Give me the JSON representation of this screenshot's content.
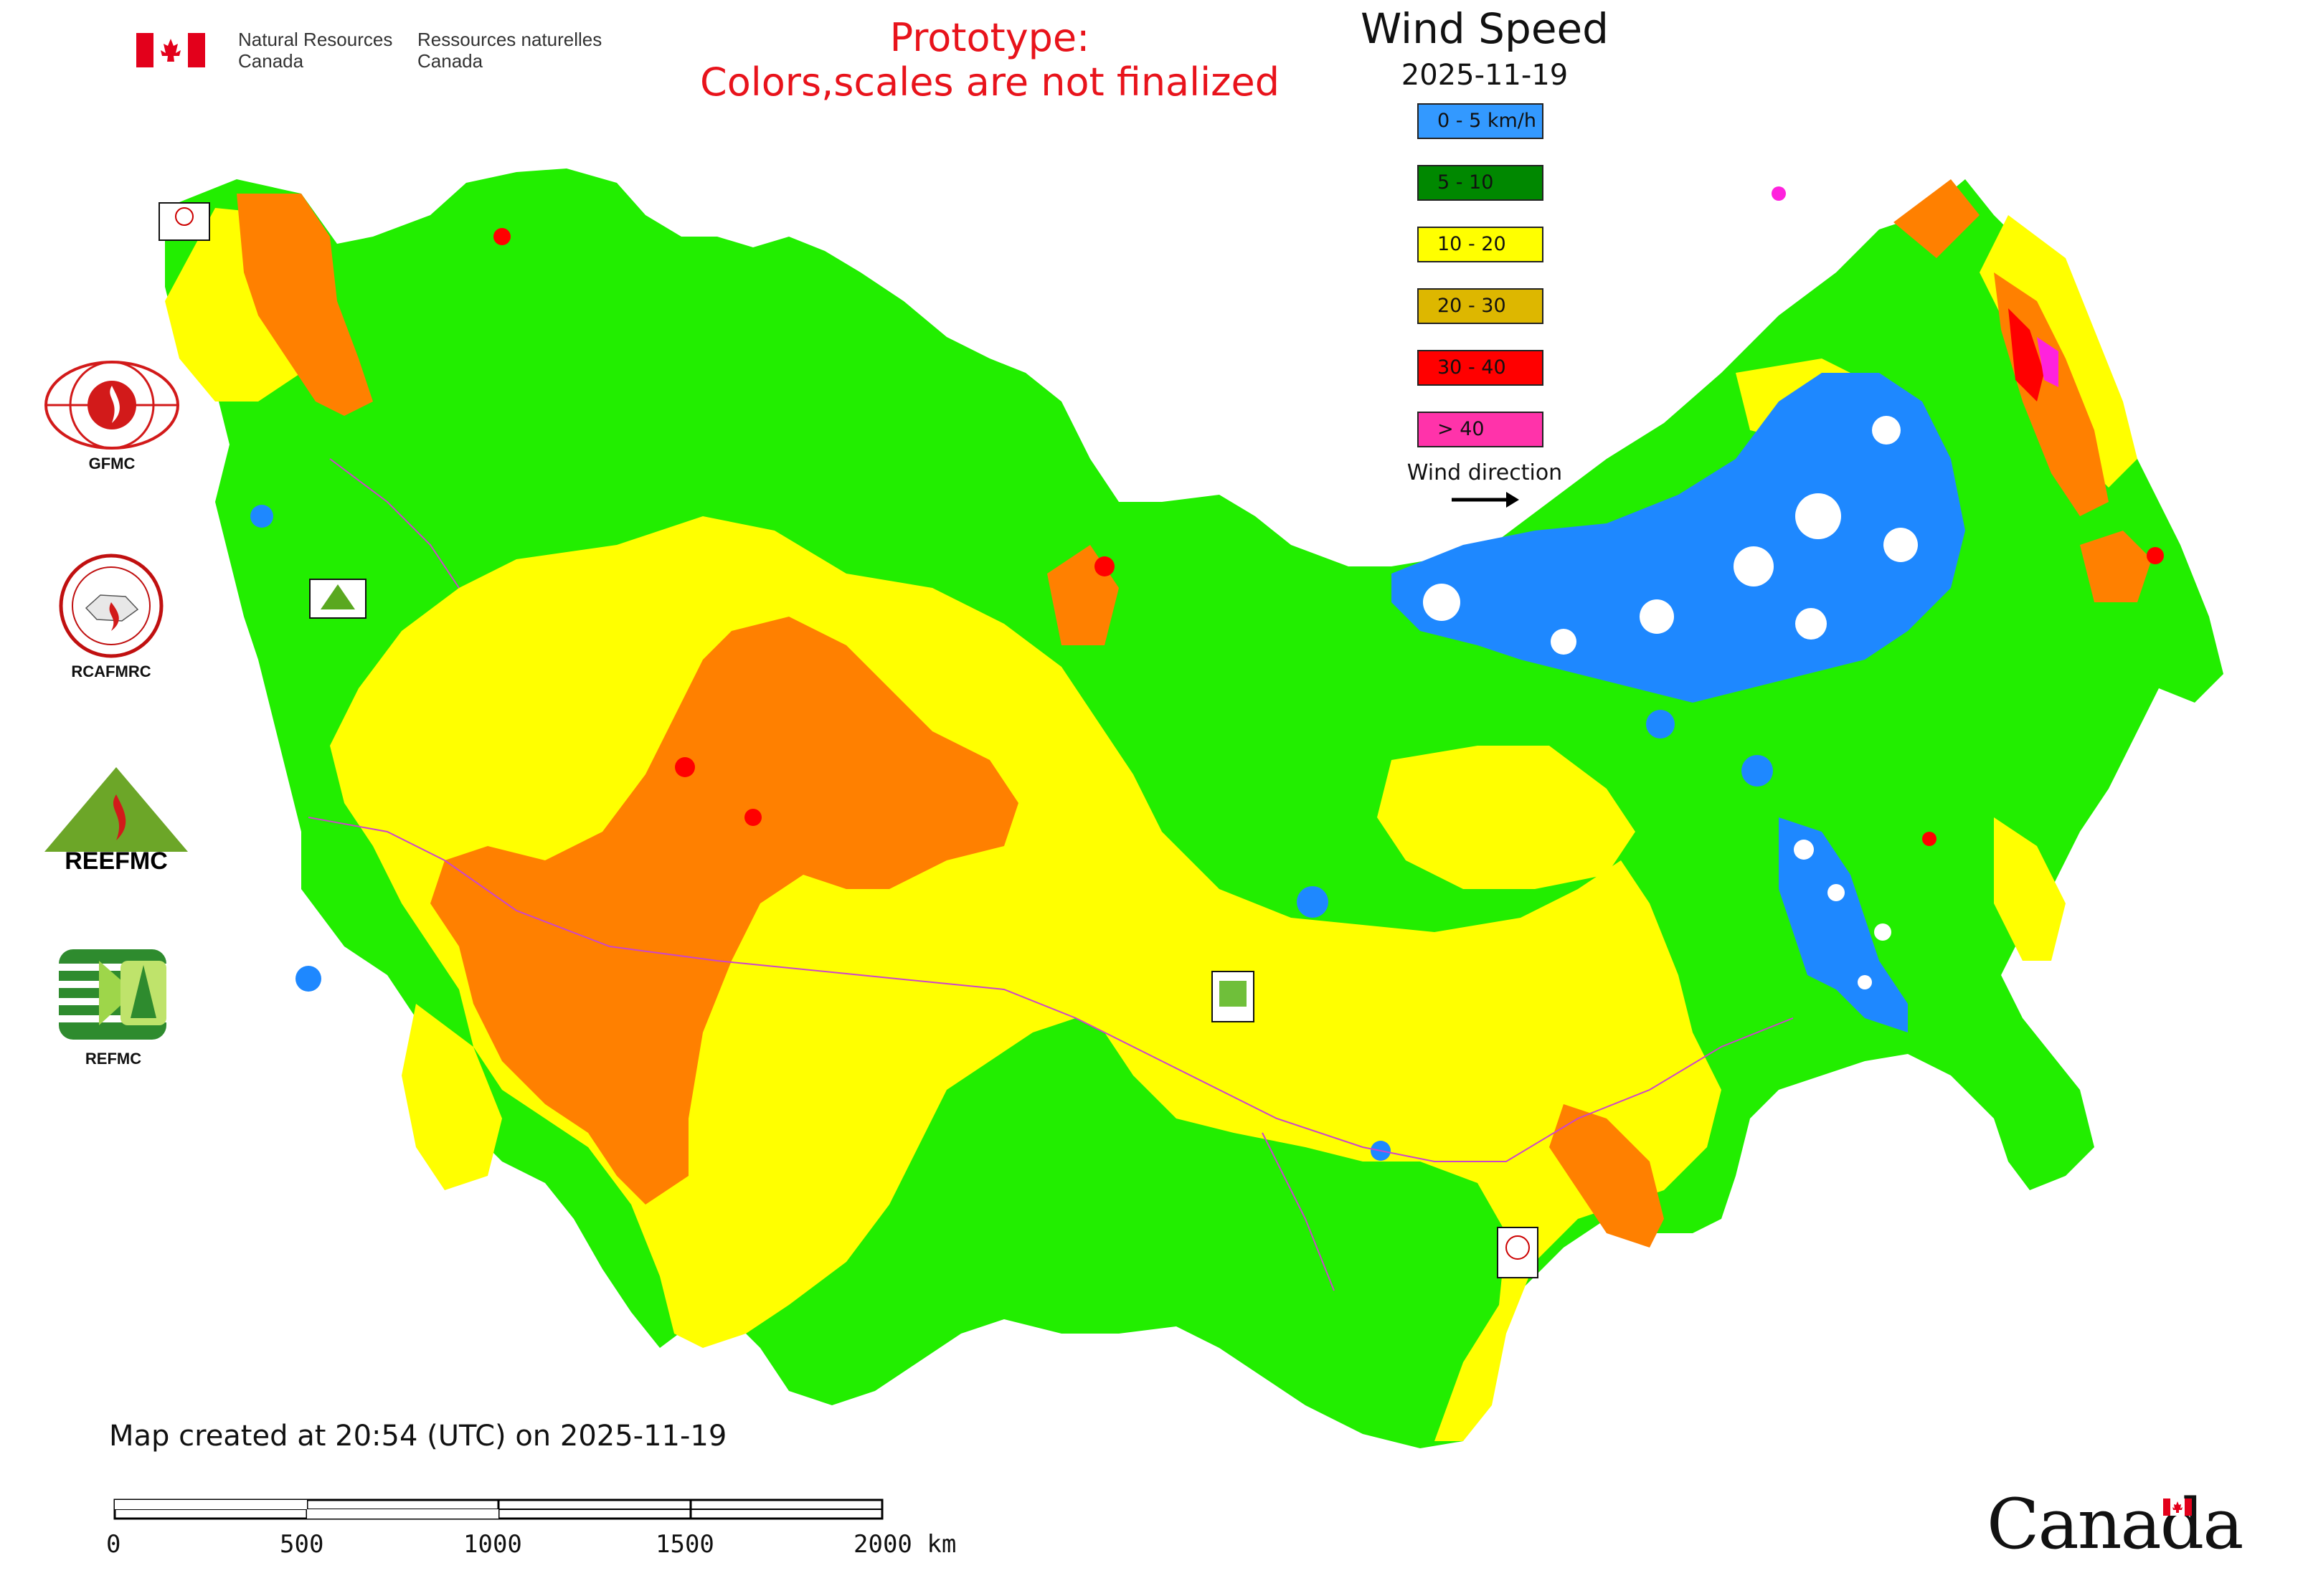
{
  "header": {
    "agency_en_line1": "Natural Resources",
    "agency_en_line2": "Canada",
    "agency_fr_line1": "Ressources naturelles",
    "agency_fr_line2": "Canada",
    "prototype_line1": "Prototype:",
    "prototype_line2": "Colors,scales are not finalized"
  },
  "legend": {
    "title": "Wind Speed",
    "date": "2025-11-19",
    "items": [
      {
        "label": "0 - 5 km/h",
        "color": "#3399ff"
      },
      {
        "label": "5 - 10",
        "color": "#008800"
      },
      {
        "label": "10 - 20",
        "color": "#ffff00"
      },
      {
        "label": "20 - 30",
        "color": "#ddb700"
      },
      {
        "label": "30 - 40",
        "color": "#ff0000"
      },
      {
        "label": "> 40",
        "color": "#ff33aa"
      }
    ],
    "wind_direction_label": "Wind direction"
  },
  "map_colors": {
    "calm": "#1e88ff",
    "light": "#22ee00",
    "moderate": "#ffff00",
    "fresh": "#ff8000",
    "strong": "#ff0000",
    "gale": "#ff22dd",
    "border": "#cc44cc"
  },
  "side_logos": [
    {
      "label": "GFMC",
      "icon": "gfmc-logo-icon"
    },
    {
      "label": "RCAFMRC",
      "icon": "rcafmrc-logo-icon"
    },
    {
      "label": "",
      "icon": "reefmc-logo-icon",
      "wordmark": "REEFMC"
    },
    {
      "label": "REFMC",
      "icon": "refmc-logo-icon"
    }
  ],
  "footer": {
    "map_created": "Map created at 20:54 (UTC) on 2025-11-19",
    "scale_ticks": [
      "0",
      "500",
      "1000",
      "1500",
      "2000 km"
    ],
    "wordmark": "Canada"
  }
}
